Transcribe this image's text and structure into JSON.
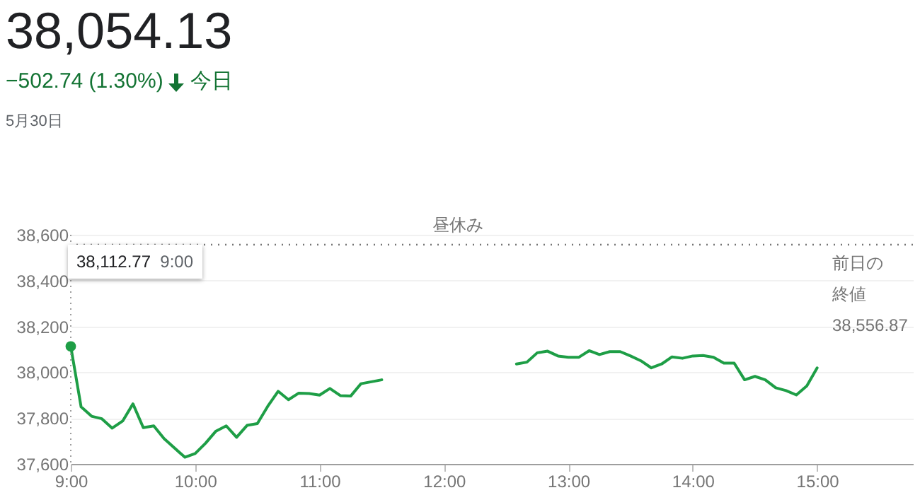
{
  "chart_data": {
    "type": "line",
    "title": "38,054.13",
    "subtitle": "−502.74 (1.30%)",
    "x": [
      9.0,
      9.083,
      9.167,
      9.25,
      9.333,
      9.417,
      9.5,
      9.583,
      9.667,
      9.75,
      9.917,
      10.0,
      10.083,
      10.167,
      10.25,
      10.333,
      10.417,
      10.5,
      10.583,
      10.667,
      10.75,
      10.833,
      10.917,
      11.0,
      11.083,
      11.167,
      11.25,
      11.333,
      11.5,
      12.0,
      12.583,
      12.667,
      12.75,
      12.833,
      12.917,
      13.0,
      13.083,
      13.167,
      13.25,
      13.333,
      13.417,
      13.5,
      13.583,
      13.667,
      13.75,
      13.833,
      13.917,
      14.0,
      14.083,
      14.167,
      14.25,
      14.333,
      14.417,
      14.5,
      14.583,
      14.667,
      14.75,
      14.833,
      14.917,
      15.0
    ],
    "series": [
      {
        "color": "#1e9e46",
        "values": [
          38112.77,
          37849,
          37808,
          37797,
          37756,
          37787,
          37862,
          37758,
          37766,
          37710,
          37629,
          37645,
          37690,
          37743,
          37766,
          37716,
          37768,
          37776,
          37851,
          37917,
          37880,
          37909,
          37907,
          37900,
          37929,
          37898,
          37896,
          37950,
          37967,
          null,
          38036,
          38044,
          38085,
          38092,
          38071,
          38065,
          38065,
          38094,
          38077,
          38090,
          38090,
          38071,
          38050,
          38019,
          38036,
          38067,
          38061,
          38071,
          38073,
          38065,
          38040,
          38040,
          37967,
          37982,
          37967,
          37932,
          37920,
          37901,
          37940,
          38019
        ]
      }
    ],
    "xlim": [
      9,
      15.77
    ],
    "xticks": [
      {
        "value": 9,
        "label": "9:00"
      },
      {
        "value": 10,
        "label": "10:00"
      },
      {
        "value": 11,
        "label": "11:00"
      },
      {
        "value": 12,
        "label": "12:00"
      },
      {
        "value": 13,
        "label": "13:00"
      },
      {
        "value": 14,
        "label": "14:00"
      },
      {
        "value": 15,
        "label": "15:00"
      }
    ],
    "ylim": [
      37600,
      38600
    ],
    "yticks": [
      {
        "value": 37600,
        "label": "37,600"
      },
      {
        "value": 37800,
        "label": "37,800"
      },
      {
        "value": 38000,
        "label": "38,000"
      },
      {
        "value": 38200,
        "label": "38,200"
      },
      {
        "value": 38400,
        "label": "38,400"
      },
      {
        "value": 38600,
        "label": "38,600"
      }
    ],
    "grid": "y",
    "marker": "none",
    "line_style": "solid",
    "ref_lines": [
      {
        "axis": "y",
        "value": 38556.87,
        "label": "前日の終値38,556.87",
        "color": "#757575",
        "line_style": "dotted"
      }
    ],
    "annotations": [
      "今日",
      "5月30日",
      "38,112.77  9:00",
      "昼休み"
    ]
  }
}
